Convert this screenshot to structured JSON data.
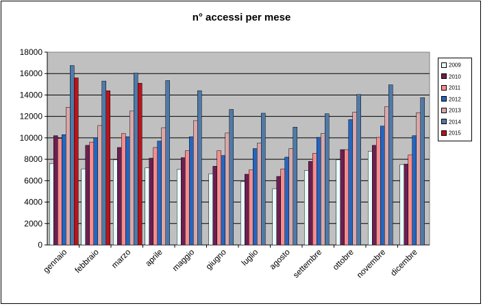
{
  "chart_data": {
    "type": "bar",
    "title": "n° accessi per mese",
    "xlabel": "",
    "ylabel": "",
    "ylim": [
      0,
      18000
    ],
    "yticks": [
      0,
      2000,
      4000,
      6000,
      8000,
      10000,
      12000,
      14000,
      16000,
      18000
    ],
    "grid": true,
    "legend_position": "right",
    "categories": [
      "gennaio",
      "febbraio",
      "marzo",
      "aprile",
      "maggio",
      "giugno",
      "luglio",
      "agosto",
      "settembre",
      "ottobre",
      "novembre",
      "dicembre"
    ],
    "series": [
      {
        "name": "2009",
        "color": "#e8fbfb",
        "values": [
          7600,
          7100,
          7950,
          7200,
          7050,
          6650,
          5900,
          5250,
          6950,
          7950,
          8750,
          7500
        ]
      },
      {
        "name": "2010",
        "color": "#6b1f52",
        "values": [
          10200,
          9300,
          9100,
          8100,
          8150,
          7350,
          6600,
          6400,
          7800,
          8900,
          9300,
          7550
        ]
      },
      {
        "name": "2011",
        "color": "#f58d8d",
        "values": [
          9950,
          9600,
          10400,
          9100,
          8800,
          8800,
          7000,
          7100,
          8550,
          8900,
          10050,
          8400
        ]
      },
      {
        "name": "2012",
        "color": "#2466c0",
        "values": [
          10300,
          10000,
          10100,
          9700,
          10100,
          8350,
          9000,
          8200,
          10050,
          11700,
          11100,
          10200
        ]
      },
      {
        "name": "2013",
        "color": "#d9a8a8",
        "values": [
          12850,
          11150,
          12500,
          10950,
          11600,
          10450,
          9500,
          9000,
          10400,
          12400,
          12900,
          12350
        ]
      },
      {
        "name": "2014",
        "color": "#4f7aa8",
        "values": [
          16750,
          15300,
          16050,
          15350,
          14400,
          12650,
          12300,
          11000,
          12250,
          14050,
          14950,
          13750
        ]
      },
      {
        "name": "2015",
        "color": "#b8141c",
        "values": [
          15600,
          14400,
          15100,
          null,
          null,
          null,
          null,
          null,
          null,
          null,
          null,
          null
        ]
      }
    ]
  }
}
